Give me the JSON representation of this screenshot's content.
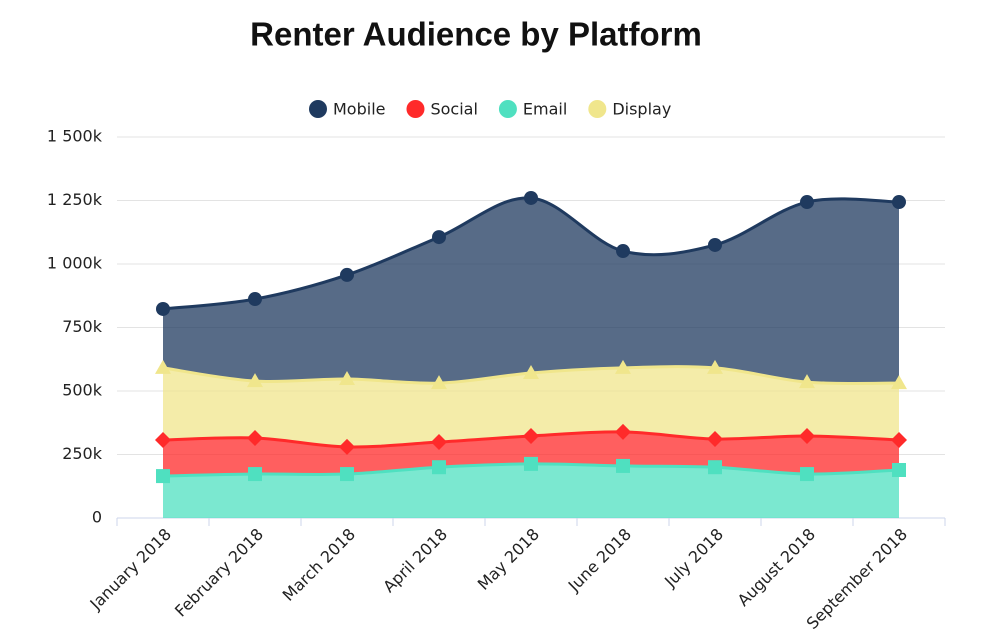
{
  "chart_data": {
    "type": "area",
    "stacked": true,
    "title": "Renter Audience by Platform",
    "categories": [
      "January 2018",
      "February 2018",
      "March 2018",
      "April 2018",
      "May 2018",
      "June 2018",
      "July 2018",
      "August 2018",
      "September 2018"
    ],
    "series": [
      {
        "name": "Mobile",
        "color": "#1f3a5f",
        "marker": "circle",
        "values": [
          232000,
          323000,
          410000,
          575000,
          689000,
          460000,
          484000,
          709000,
          713000
        ]
      },
      {
        "name": "Social",
        "color": "#ff2a2a",
        "marker": "diamond",
        "values": [
          142000,
          142000,
          107000,
          99000,
          110000,
          134000,
          111000,
          150000,
          118000
        ]
      },
      {
        "name": "Email",
        "color": "#4fe0c0",
        "marker": "square",
        "values": [
          165000,
          173000,
          173000,
          200000,
          213000,
          205000,
          200000,
          173000,
          189000
        ]
      },
      {
        "name": "Display",
        "color": "#f0e68c",
        "marker": "triangle",
        "values": [
          284000,
          224000,
          267000,
          232000,
          248000,
          252000,
          280000,
          212000,
          224000
        ]
      }
    ],
    "stack_order": [
      "Email",
      "Social",
      "Display",
      "Mobile"
    ],
    "ylim": [
      0,
      1500000
    ],
    "yticks": [
      0,
      {
        "value": 250000,
        "label": "250k"
      },
      {
        "value": 500000,
        "label": "500k"
      },
      {
        "value": 750000,
        "label": "750k"
      },
      {
        "value": 1000000,
        "label": "1 000k"
      },
      {
        "value": 1250000,
        "label": "1 250k"
      },
      {
        "value": 1500000,
        "label": "1 500k"
      }
    ],
    "grid": true,
    "legend": "top"
  }
}
